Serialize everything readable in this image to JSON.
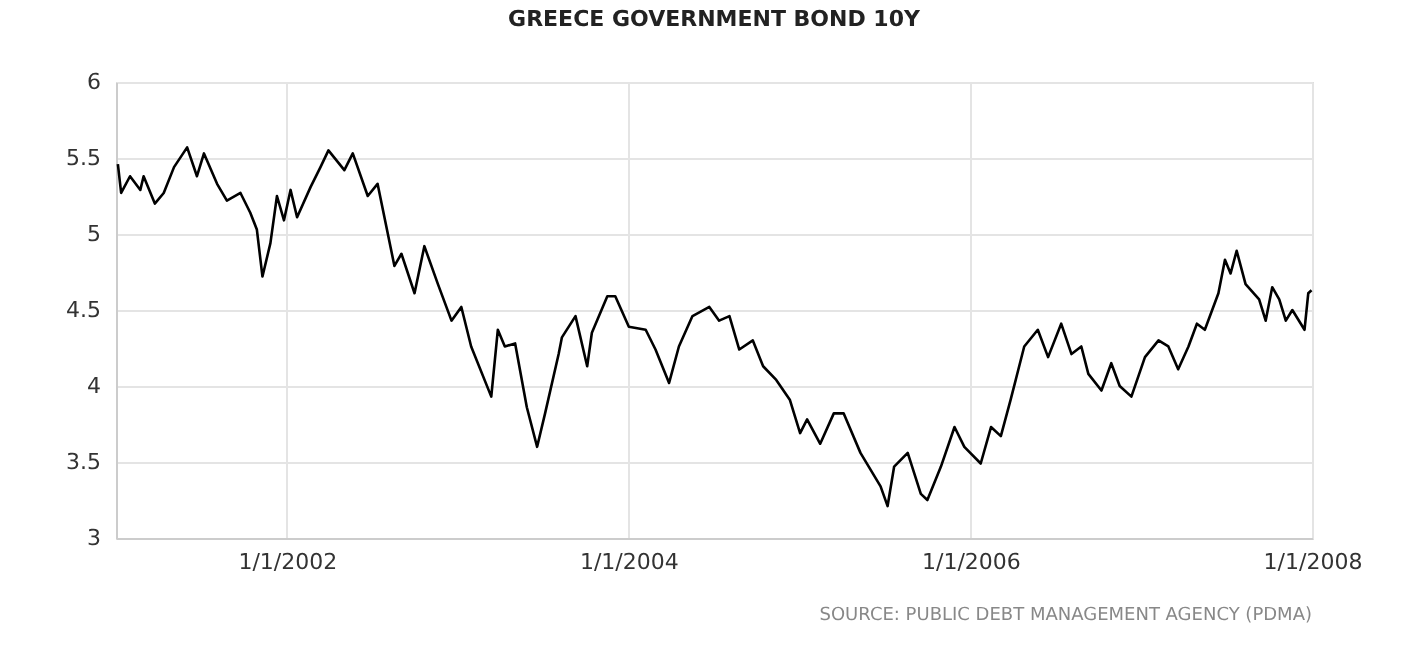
{
  "chart_data": {
    "type": "line",
    "title": "GREECE GOVERNMENT BOND 10Y",
    "annotations": [
      "SOURCE: PUBLIC DEBT MANAGEMENT AGENCY (PDMA)"
    ],
    "x": [
      "2001-01-05",
      "2001-01-12",
      "2001-01-31",
      "2001-02-22",
      "2001-03-01",
      "2001-03-25",
      "2001-04-13",
      "2001-05-05",
      "2001-06-02",
      "2001-06-23",
      "2001-07-08",
      "2001-08-05",
      "2001-08-26",
      "2001-09-24",
      "2001-10-15",
      "2001-10-29",
      "2001-11-10",
      "2001-11-27",
      "2001-12-11",
      "2001-12-26",
      "2002-01-09",
      "2002-01-23",
      "2002-02-21",
      "2002-03-14",
      "2002-03-31",
      "2002-05-04",
      "2002-05-22",
      "2002-06-23",
      "2002-07-14",
      "2002-08-19",
      "2002-09-03",
      "2002-10-01",
      "2002-10-22",
      "2002-11-20",
      "2002-12-19",
      "2003-01-09",
      "2003-01-30",
      "2003-03-14",
      "2003-03-28",
      "2003-04-12",
      "2003-05-04",
      "2003-05-29",
      "2003-06-20",
      "2003-07-07",
      "2003-08-05",
      "2003-08-12",
      "2003-09-10",
      "2003-10-05",
      "2003-10-15",
      "2003-11-17",
      "2003-12-04",
      "2004-01-02",
      "2004-02-07",
      "2004-02-28",
      "2004-03-28",
      "2004-04-18",
      "2004-05-17",
      "2004-06-22",
      "2004-07-13",
      "2004-08-04",
      "2004-08-25",
      "2004-09-23",
      "2004-10-15",
      "2004-11-12",
      "2004-12-11",
      "2005-01-02",
      "2005-01-17",
      "2005-02-14",
      "2005-03-15",
      "2005-04-05",
      "2005-05-11",
      "2005-06-23",
      "2005-07-08",
      "2005-07-22",
      "2005-08-20",
      "2005-09-17",
      "2005-10-01",
      "2005-10-30",
      "2005-11-28",
      "2005-12-19",
      "2006-01-23",
      "2006-02-14",
      "2006-03-07",
      "2006-03-28",
      "2006-04-26",
      "2006-05-25",
      "2006-06-16",
      "2006-07-14",
      "2006-08-05",
      "2006-08-26",
      "2006-09-10",
      "2006-10-08",
      "2006-10-29",
      "2006-11-16",
      "2006-12-11",
      "2007-01-09",
      "2007-02-07",
      "2007-02-28",
      "2007-03-21",
      "2007-04-12",
      "2007-04-30",
      "2007-05-17",
      "2007-06-15",
      "2007-06-29",
      "2007-07-11",
      "2007-07-24",
      "2007-08-12",
      "2007-09-10",
      "2007-09-24",
      "2007-10-08",
      "2007-10-23",
      "2007-11-06",
      "2007-11-20",
      "2007-12-16",
      "2007-12-24",
      "2007-12-31"
    ],
    "series": [
      {
        "color": "#000000",
        "values": [
          5.46,
          5.27,
          5.38,
          5.29,
          5.38,
          5.2,
          5.27,
          5.44,
          5.57,
          5.38,
          5.53,
          5.33,
          5.22,
          5.27,
          5.14,
          5.03,
          4.72,
          4.94,
          5.25,
          5.09,
          5.29,
          5.11,
          5.31,
          5.44,
          5.55,
          5.42,
          5.53,
          5.25,
          5.33,
          4.79,
          4.87,
          4.61,
          4.92,
          4.67,
          4.43,
          4.52,
          4.26,
          3.93,
          4.37,
          4.26,
          4.28,
          3.86,
          3.6,
          3.82,
          4.21,
          4.32,
          4.46,
          4.13,
          4.35,
          4.59,
          4.59,
          4.39,
          4.37,
          4.24,
          4.02,
          4.26,
          4.46,
          4.52,
          4.43,
          4.46,
          4.24,
          4.3,
          4.13,
          4.04,
          3.91,
          3.69,
          3.78,
          3.62,
          3.82,
          3.82,
          3.56,
          3.34,
          3.21,
          3.47,
          3.56,
          3.29,
          3.25,
          3.47,
          3.73,
          3.6,
          3.49,
          3.73,
          3.67,
          3.91,
          4.26,
          4.37,
          4.19,
          4.41,
          4.21,
          4.26,
          4.08,
          3.97,
          4.15,
          4.0,
          3.93,
          4.19,
          4.3,
          4.26,
          4.11,
          4.26,
          4.41,
          4.37,
          4.61,
          4.83,
          4.74,
          4.89,
          4.67,
          4.57,
          4.43,
          4.65,
          4.57,
          4.43,
          4.5,
          4.37,
          4.61,
          4.63
        ]
      }
    ],
    "xlim": [
      "2001-01-01",
      "2008-01-01"
    ],
    "xticks": [
      {
        "value": "2002-01-01",
        "label": "1/1/2002"
      },
      {
        "value": "2004-01-01",
        "label": "1/1/2004"
      },
      {
        "value": "2006-01-01",
        "label": "1/1/2006"
      },
      {
        "value": "2008-01-01",
        "label": "1/1/2008"
      }
    ],
    "ylim": [
      3,
      6
    ],
    "yticks": [
      3,
      3.5,
      4,
      4.5,
      5,
      5.5,
      6
    ],
    "grid": true,
    "legend": false,
    "marker": "none",
    "line_style": "solid"
  }
}
